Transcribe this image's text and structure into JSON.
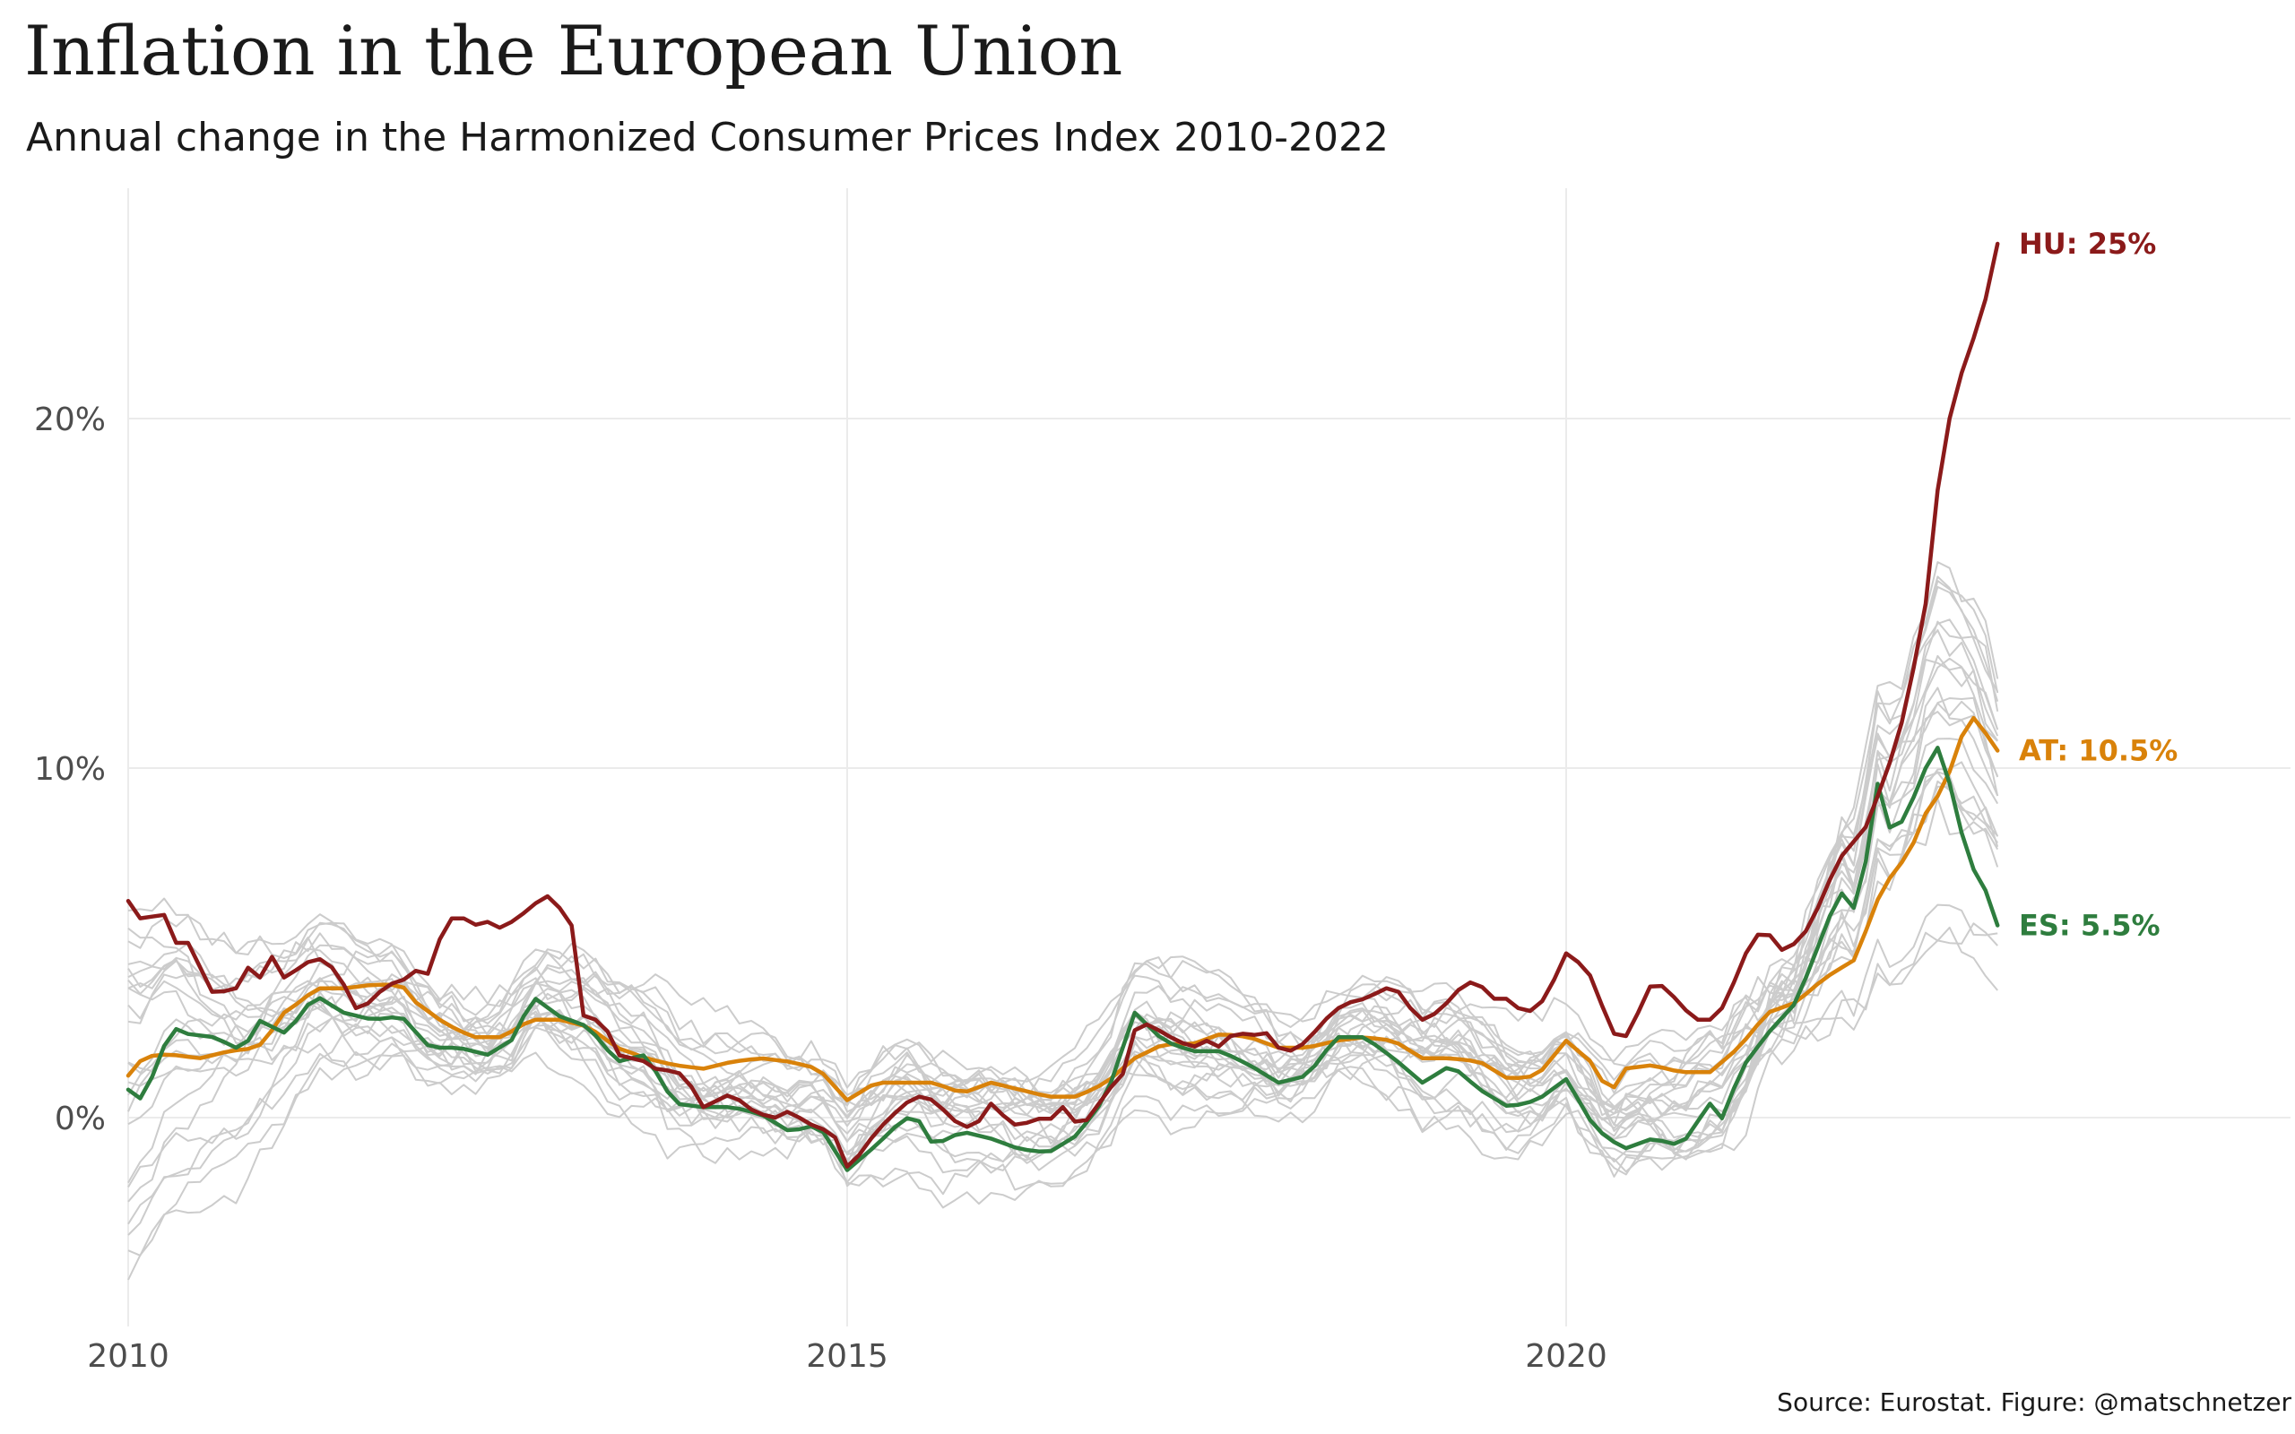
{
  "title": "Inflation in the European Union",
  "subtitle": "Annual change in the Harmonized Consumer Prices Index 2010-2022",
  "caption": "Source: Eurostat. Figure: @matschnetzer",
  "chart_data": {
    "type": "line",
    "title": "Inflation in the European Union",
    "subtitle": "Annual change in the Harmonized Consumer Prices Index 2010-2022",
    "xlabel": "",
    "ylabel": "",
    "x_ticks": [
      2010,
      2015,
      2020
    ],
    "y_ticks": [
      0,
      10,
      20
    ],
    "y_tick_labels": [
      "0%",
      "10%",
      "20%"
    ],
    "xlim": [
      2010,
      2025
    ],
    "ylim": [
      -6.5,
      26.5
    ],
    "grid": true,
    "x_unit": "year (monthly observations, Jan 2010 - Dec 2022)",
    "background_series_color": "#cccccc",
    "highlight_series": [
      {
        "name": "HU",
        "label": "HU: 25%",
        "color": "#8b1a1a",
        "keyframes": [
          [
            2010.0,
            6.2
          ],
          [
            2010.08,
            5.7
          ],
          [
            2010.25,
            5.8
          ],
          [
            2010.33,
            5.0
          ],
          [
            2010.45,
            5.0
          ],
          [
            2010.55,
            3.6
          ],
          [
            2010.65,
            3.6
          ],
          [
            2010.75,
            3.7
          ],
          [
            2010.83,
            4.3
          ],
          [
            2010.92,
            4.0
          ],
          [
            2011.0,
            4.6
          ],
          [
            2011.08,
            4.0
          ],
          [
            2011.2,
            4.3
          ],
          [
            2011.3,
            4.6
          ],
          [
            2011.4,
            4.4
          ],
          [
            2011.5,
            3.8
          ],
          [
            2011.6,
            3.0
          ],
          [
            2011.7,
            3.4
          ],
          [
            2011.8,
            3.8
          ],
          [
            2011.9,
            3.9
          ],
          [
            2012.0,
            4.2
          ],
          [
            2012.1,
            4.1
          ],
          [
            2012.2,
            5.6
          ],
          [
            2012.3,
            5.8
          ],
          [
            2012.4,
            5.5
          ],
          [
            2012.5,
            5.6
          ],
          [
            2012.6,
            5.4
          ],
          [
            2012.7,
            5.7
          ],
          [
            2012.8,
            6.0
          ],
          [
            2012.9,
            6.4
          ],
          [
            2013.0,
            6.0
          ],
          [
            2013.1,
            5.4
          ],
          [
            2013.17,
            2.8
          ],
          [
            2013.3,
            2.8
          ],
          [
            2013.4,
            1.8
          ],
          [
            2013.5,
            1.7
          ],
          [
            2013.6,
            1.6
          ],
          [
            2013.7,
            1.3
          ],
          [
            2013.8,
            1.4
          ],
          [
            2013.9,
            1.0
          ],
          [
            2014.0,
            0.3
          ],
          [
            2014.1,
            0.5
          ],
          [
            2014.2,
            0.7
          ],
          [
            2014.3,
            0.3
          ],
          [
            2014.4,
            0.1
          ],
          [
            2014.5,
            0.0
          ],
          [
            2014.6,
            0.2
          ],
          [
            2014.7,
            -0.1
          ],
          [
            2014.8,
            -0.3
          ],
          [
            2014.9,
            -0.4
          ],
          [
            2015.0,
            -1.4
          ],
          [
            2015.1,
            -1.0
          ],
          [
            2015.2,
            -0.4
          ],
          [
            2015.3,
            0.0
          ],
          [
            2015.4,
            0.4
          ],
          [
            2015.5,
            0.6
          ],
          [
            2015.6,
            0.5
          ],
          [
            2015.7,
            0.1
          ],
          [
            2015.8,
            -0.3
          ],
          [
            2015.9,
            -0.2
          ],
          [
            2016.0,
            0.4
          ],
          [
            2016.1,
            0.0
          ],
          [
            2016.2,
            -0.3
          ],
          [
            2016.3,
            0.0
          ],
          [
            2016.4,
            -0.1
          ],
          [
            2016.5,
            0.3
          ],
          [
            2016.6,
            -0.2
          ],
          [
            2016.7,
            0.0
          ],
          [
            2016.8,
            0.8
          ],
          [
            2016.9,
            1.0
          ],
          [
            2017.0,
            2.5
          ],
          [
            2017.1,
            2.7
          ],
          [
            2017.2,
            2.4
          ],
          [
            2017.3,
            2.2
          ],
          [
            2017.4,
            2.0
          ],
          [
            2017.5,
            2.2
          ],
          [
            2017.6,
            2.0
          ],
          [
            2017.7,
            2.5
          ],
          [
            2017.8,
            2.3
          ],
          [
            2017.9,
            2.5
          ],
          [
            2018.0,
            2.0
          ],
          [
            2018.1,
            1.9
          ],
          [
            2018.2,
            2.2
          ],
          [
            2018.3,
            2.7
          ],
          [
            2018.4,
            3.1
          ],
          [
            2018.5,
            3.3
          ],
          [
            2018.6,
            3.4
          ],
          [
            2018.7,
            3.6
          ],
          [
            2018.8,
            3.8
          ],
          [
            2018.9,
            3.2
          ],
          [
            2019.0,
            2.8
          ],
          [
            2019.1,
            3.0
          ],
          [
            2019.2,
            3.4
          ],
          [
            2019.3,
            3.9
          ],
          [
            2019.4,
            3.8
          ],
          [
            2019.5,
            3.4
          ],
          [
            2019.6,
            3.4
          ],
          [
            2019.7,
            3.0
          ],
          [
            2019.8,
            3.1
          ],
          [
            2019.9,
            3.8
          ],
          [
            2020.0,
            4.7
          ],
          [
            2020.1,
            4.4
          ],
          [
            2020.2,
            3.9
          ],
          [
            2020.3,
            2.5
          ],
          [
            2020.4,
            2.2
          ],
          [
            2020.5,
            3.0
          ],
          [
            2020.6,
            3.9
          ],
          [
            2020.7,
            3.7
          ],
          [
            2020.8,
            3.2
          ],
          [
            2020.9,
            2.8
          ],
          [
            2021.0,
            2.8
          ],
          [
            2021.1,
            3.2
          ],
          [
            2021.2,
            4.2
          ],
          [
            2021.3,
            5.2
          ],
          [
            2021.4,
            5.3
          ],
          [
            2021.5,
            4.8
          ],
          [
            2021.6,
            5.0
          ],
          [
            2021.7,
            5.5
          ],
          [
            2021.8,
            6.5
          ],
          [
            2021.9,
            7.4
          ],
          [
            2022.0,
            7.9
          ],
          [
            2022.1,
            8.4
          ],
          [
            2022.2,
            9.6
          ],
          [
            2022.3,
            10.7
          ],
          [
            2022.4,
            12.5
          ],
          [
            2022.5,
            14.7
          ],
          [
            2022.6,
            18.6
          ],
          [
            2022.7,
            20.7
          ],
          [
            2022.8,
            21.9
          ],
          [
            2022.9,
            23.1
          ],
          [
            2023.0,
            25.0
          ]
        ]
      },
      {
        "name": "AT",
        "label": "AT: 10.5%",
        "color": "#d9820a",
        "keyframes": [
          [
            2010.0,
            1.2
          ],
          [
            2010.1,
            1.7
          ],
          [
            2010.2,
            1.8
          ],
          [
            2010.3,
            1.8
          ],
          [
            2010.5,
            1.7
          ],
          [
            2010.7,
            1.9
          ],
          [
            2010.9,
            2.0
          ],
          [
            2011.0,
            2.5
          ],
          [
            2011.1,
            3.1
          ],
          [
            2011.2,
            3.3
          ],
          [
            2011.3,
            3.7
          ],
          [
            2011.5,
            3.7
          ],
          [
            2011.7,
            3.8
          ],
          [
            2011.9,
            3.8
          ],
          [
            2012.0,
            3.3
          ],
          [
            2012.2,
            2.7
          ],
          [
            2012.4,
            2.3
          ],
          [
            2012.6,
            2.3
          ],
          [
            2012.8,
            2.8
          ],
          [
            2013.0,
            2.8
          ],
          [
            2013.2,
            2.6
          ],
          [
            2013.4,
            2.0
          ],
          [
            2013.6,
            1.7
          ],
          [
            2013.8,
            1.5
          ],
          [
            2014.0,
            1.4
          ],
          [
            2014.2,
            1.6
          ],
          [
            2014.4,
            1.7
          ],
          [
            2014.6,
            1.6
          ],
          [
            2014.8,
            1.4
          ],
          [
            2015.0,
            0.5
          ],
          [
            2015.2,
            1.0
          ],
          [
            2015.4,
            1.0
          ],
          [
            2015.6,
            1.0
          ],
          [
            2015.8,
            0.7
          ],
          [
            2016.0,
            1.0
          ],
          [
            2016.2,
            0.8
          ],
          [
            2016.4,
            0.6
          ],
          [
            2016.6,
            0.6
          ],
          [
            2016.8,
            1.0
          ],
          [
            2017.0,
            1.7
          ],
          [
            2017.2,
            2.1
          ],
          [
            2017.4,
            2.1
          ],
          [
            2017.6,
            2.4
          ],
          [
            2017.8,
            2.3
          ],
          [
            2018.0,
            2.0
          ],
          [
            2018.2,
            2.0
          ],
          [
            2018.4,
            2.2
          ],
          [
            2018.6,
            2.3
          ],
          [
            2018.8,
            2.2
          ],
          [
            2019.0,
            1.7
          ],
          [
            2019.2,
            1.7
          ],
          [
            2019.4,
            1.6
          ],
          [
            2019.6,
            1.1
          ],
          [
            2019.8,
            1.2
          ],
          [
            2020.0,
            2.2
          ],
          [
            2020.2,
            1.5
          ],
          [
            2020.3,
            0.6
          ],
          [
            2020.4,
            1.4
          ],
          [
            2020.6,
            1.5
          ],
          [
            2020.8,
            1.3
          ],
          [
            2021.0,
            1.3
          ],
          [
            2021.2,
            2.0
          ],
          [
            2021.4,
            3.0
          ],
          [
            2021.6,
            3.3
          ],
          [
            2021.8,
            4.0
          ],
          [
            2022.0,
            4.5
          ],
          [
            2022.1,
            5.5
          ],
          [
            2022.2,
            6.6
          ],
          [
            2022.3,
            7.1
          ],
          [
            2022.4,
            7.7
          ],
          [
            2022.5,
            8.7
          ],
          [
            2022.6,
            9.3
          ],
          [
            2022.7,
            10.2
          ],
          [
            2022.8,
            11.6
          ],
          [
            2022.9,
            11.1
          ],
          [
            2023.0,
            10.5
          ]
        ]
      },
      {
        "name": "ES",
        "label": "ES: 5.5%",
        "color": "#2e7d3e",
        "keyframes": [
          [
            2010.0,
            0.8
          ],
          [
            2010.1,
            0.5
          ],
          [
            2010.2,
            1.5
          ],
          [
            2010.3,
            2.6
          ],
          [
            2010.4,
            2.4
          ],
          [
            2010.6,
            2.3
          ],
          [
            2010.8,
            1.9
          ],
          [
            2010.9,
            2.8
          ],
          [
            2011.1,
            2.4
          ],
          [
            2011.3,
            3.5
          ],
          [
            2011.5,
            3.0
          ],
          [
            2011.7,
            2.8
          ],
          [
            2011.9,
            2.9
          ],
          [
            2012.1,
            2.0
          ],
          [
            2012.3,
            2.0
          ],
          [
            2012.5,
            1.8
          ],
          [
            2012.7,
            2.3
          ],
          [
            2012.8,
            3.5
          ],
          [
            2013.0,
            2.9
          ],
          [
            2013.2,
            2.6
          ],
          [
            2013.4,
            1.6
          ],
          [
            2013.6,
            1.8
          ],
          [
            2013.8,
            0.4
          ],
          [
            2014.0,
            0.3
          ],
          [
            2014.2,
            0.3
          ],
          [
            2014.4,
            0.1
          ],
          [
            2014.6,
            -0.4
          ],
          [
            2014.8,
            -0.2
          ],
          [
            2015.0,
            -1.5
          ],
          [
            2015.2,
            -0.8
          ],
          [
            2015.4,
            0.0
          ],
          [
            2015.5,
            -0.1
          ],
          [
            2015.6,
            -0.8
          ],
          [
            2015.8,
            -0.4
          ],
          [
            2016.0,
            -0.6
          ],
          [
            2016.2,
            -0.9
          ],
          [
            2016.4,
            -1.0
          ],
          [
            2016.6,
            -0.5
          ],
          [
            2016.8,
            0.6
          ],
          [
            2017.0,
            3.0
          ],
          [
            2017.2,
            2.2
          ],
          [
            2017.4,
            1.9
          ],
          [
            2017.6,
            1.9
          ],
          [
            2017.8,
            1.5
          ],
          [
            2018.0,
            1.0
          ],
          [
            2018.2,
            1.2
          ],
          [
            2018.4,
            2.3
          ],
          [
            2018.6,
            2.3
          ],
          [
            2018.8,
            1.7
          ],
          [
            2019.0,
            1.0
          ],
          [
            2019.2,
            1.5
          ],
          [
            2019.4,
            0.8
          ],
          [
            2019.6,
            0.3
          ],
          [
            2019.8,
            0.5
          ],
          [
            2020.0,
            1.1
          ],
          [
            2020.2,
            -0.3
          ],
          [
            2020.4,
            -0.9
          ],
          [
            2020.6,
            -0.6
          ],
          [
            2020.8,
            -0.8
          ],
          [
            2021.0,
            0.4
          ],
          [
            2021.1,
            -0.1
          ],
          [
            2021.2,
            1.3
          ],
          [
            2021.4,
            2.4
          ],
          [
            2021.6,
            3.3
          ],
          [
            2021.8,
            5.4
          ],
          [
            2021.9,
            6.5
          ],
          [
            2022.0,
            6.0
          ],
          [
            2022.1,
            7.6
          ],
          [
            2022.15,
            9.8
          ],
          [
            2022.25,
            8.3
          ],
          [
            2022.35,
            8.5
          ],
          [
            2022.5,
            10.0
          ],
          [
            2022.6,
            10.7
          ],
          [
            2022.7,
            9.0
          ],
          [
            2022.8,
            7.3
          ],
          [
            2022.9,
            6.7
          ],
          [
            2023.0,
            5.5
          ]
        ]
      }
    ]
  }
}
